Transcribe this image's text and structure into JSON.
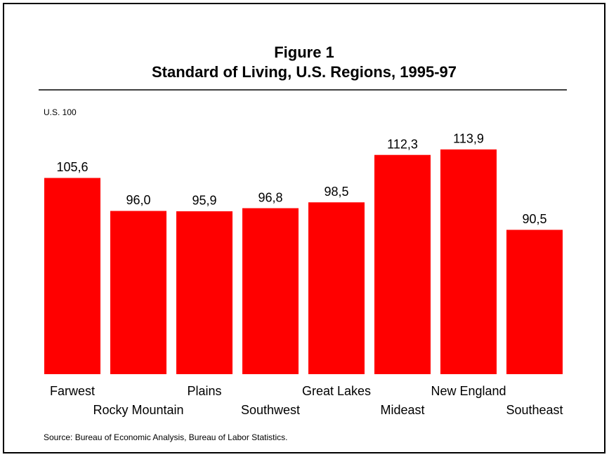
{
  "chart_data": {
    "type": "bar",
    "title": [
      "Figure 1",
      "Standard of Living, U.S. Regions, 1995-97"
    ],
    "subtitle": "U.S. 100",
    "categories": [
      "Farwest",
      "Rocky Mountain",
      "Plains",
      "Southwest",
      "Great Lakes",
      "Mideast",
      "New England",
      "Southeast"
    ],
    "values": [
      105.6,
      96.0,
      95.9,
      96.8,
      98.5,
      112.3,
      113.9,
      90.5
    ],
    "value_labels": [
      "105,6",
      "96,0",
      "95,9",
      "96,8",
      "98,5",
      "112,3",
      "113,9",
      "90,5"
    ],
    "color": "#ff0000",
    "ylim": [
      48.5,
      120
    ],
    "source": "Source: Bureau of Economic Analysis, Bureau of Labor Statistics."
  }
}
